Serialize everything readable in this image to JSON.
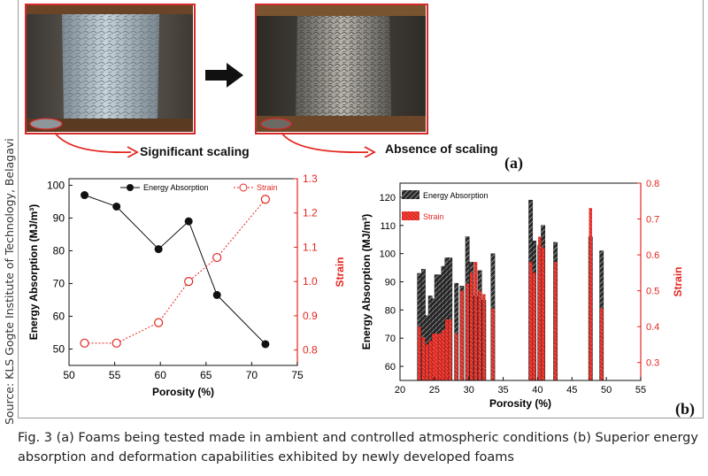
{
  "source_text": "Source: KLS Gogte Institute of Technology, Belagavi",
  "caption": "Fig. 3 (a) Foams being tested made in ambient and controlled atmospheric conditions (b) Superior energy absorption and deformation capabilities exhibited by newly developed foams",
  "panel_a": {
    "label_left": "Significant scaling",
    "label_right": "Absence of scaling",
    "panel_label": "(a)"
  },
  "panel_b_label": "(b)",
  "colors": {
    "red": "#e3261f",
    "black": "#111111",
    "frame": "#9a9a9a",
    "photo_border": "#d42a2a"
  },
  "chart_data": [
    {
      "type": "line",
      "title": "",
      "xlabel": "Porosity (%)",
      "ylabel_left": "Energy Absorption (MJ/m³)",
      "ylabel_right": "Strain",
      "xlim": [
        50,
        75
      ],
      "ylim_left": [
        45,
        102
      ],
      "ylim_right": [
        0.755,
        1.3
      ],
      "xticks": [
        "50",
        "55",
        "60",
        "65",
        "70",
        "75"
      ],
      "yticks_left": [
        "50",
        "60",
        "70",
        "80",
        "90",
        "100"
      ],
      "yticks_right": [
        "0.8",
        "0.9",
        "1.0",
        "1.1",
        "1.2",
        "1.3"
      ],
      "legend_position": "top",
      "series": [
        {
          "name": "Energy Absorption",
          "axis": "left",
          "marker": "filled-circle",
          "color": "#111111",
          "x": [
            51.7,
            55.2,
            59.8,
            63.1,
            66.2,
            71.5
          ],
          "y": [
            97,
            93.5,
            80.5,
            89,
            66.5,
            51.5
          ]
        },
        {
          "name": "Strain",
          "axis": "right",
          "marker": "open-circle",
          "color": "#e3261f",
          "x": [
            51.7,
            55.2,
            59.8,
            63.1,
            66.2,
            71.5
          ],
          "y": [
            0.82,
            0.82,
            0.88,
            1.0,
            1.07,
            1.24
          ]
        }
      ]
    },
    {
      "type": "bar",
      "title": "",
      "xlabel": "Porosity (%)",
      "ylabel_left": "Energy Absorption (MJ/m³)",
      "ylabel_right": "Strain",
      "xlim": [
        20,
        55
      ],
      "ylim_left": [
        55,
        125
      ],
      "ylim_right": [
        0.25,
        0.8
      ],
      "xticks": [
        "20",
        "25",
        "30",
        "35",
        "40",
        "45",
        "50",
        "55"
      ],
      "yticks_left": [
        "60",
        "70",
        "80",
        "90",
        "100",
        "110",
        "120"
      ],
      "yticks_right": [
        "0.3",
        "0.4",
        "0.5",
        "0.6",
        "0.7",
        "0.8"
      ],
      "legend_position": "top-left",
      "series": [
        {
          "name": "Energy Absorption",
          "axis": "left",
          "color": "#111111",
          "pattern": "hatched",
          "x": [
            22.8,
            23.4,
            23.9,
            24.4,
            24.9,
            25.3,
            25.8,
            26.3,
            26.8,
            27.3,
            28.2,
            29.0,
            29.8,
            30.4,
            31.0,
            31.6,
            32.2,
            33.5,
            39.0,
            39.5,
            40.3,
            40.8,
            42.6,
            47.7,
            49.3
          ],
          "values": [
            93,
            94.5,
            78,
            85,
            84,
            92.5,
            92.5,
            95.5,
            98.5,
            98.5,
            89.5,
            88.5,
            106,
            97,
            85,
            94,
            83.5,
            100,
            119,
            104.5,
            103,
            110,
            104,
            106,
            101
          ]
        },
        {
          "name": "Strain",
          "axis": "right",
          "color": "#e3261f",
          "pattern": "hatched",
          "x": [
            22.8,
            23.4,
            23.9,
            24.4,
            24.9,
            25.3,
            25.8,
            26.3,
            26.8,
            27.3,
            28.2,
            29.0,
            29.8,
            30.4,
            31.0,
            31.6,
            32.2,
            33.5,
            39.0,
            39.5,
            40.3,
            40.8,
            42.6,
            47.7,
            49.3
          ],
          "values": [
            0.4,
            0.37,
            0.35,
            0.36,
            0.38,
            0.38,
            0.38,
            0.39,
            0.42,
            0.42,
            0.38,
            0.5,
            0.52,
            0.55,
            0.58,
            0.5,
            0.49,
            0.45,
            0.58,
            0.55,
            0.65,
            0.62,
            0.58,
            0.73,
            0.45
          ]
        }
      ]
    }
  ]
}
